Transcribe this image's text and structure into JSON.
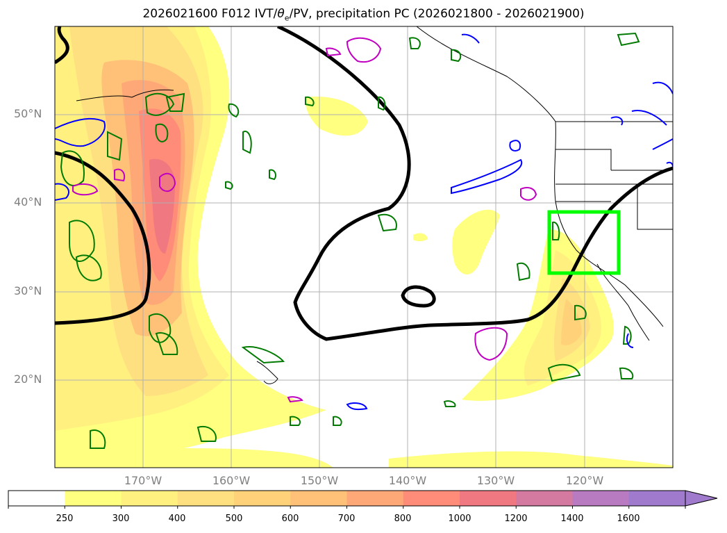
{
  "title": {
    "prefix": "2026021600 F012 IVT/",
    "theta": "θ",
    "sub": "e",
    "suffix": "/PV, precipitation PC (2026021800 - 2026021900)"
  },
  "axes": {
    "lat_labels": [
      "50°N",
      "40°N",
      "30°N",
      "20°N"
    ],
    "lon_labels": [
      "170°W",
      "160°W",
      "150°W",
      "140°W",
      "130°W",
      "120°W"
    ]
  },
  "colorbar": {
    "levels": [
      "250",
      "300",
      "400",
      "500",
      "600",
      "700",
      "800",
      "1000",
      "1200",
      "1400",
      "1600"
    ],
    "colors": [
      "#ffffff",
      "#ffff80",
      "#fff080",
      "#ffe080",
      "#ffd27a",
      "#ffc078",
      "#ffa877",
      "#ff8c78",
      "#f07880",
      "#d47aa0",
      "#b87ac0",
      "#a07acc"
    ]
  },
  "overlays": {
    "highlight_box_color": "#00ff00",
    "theta_contour_color": "#000000",
    "pv_contour_colors": [
      "#007a00",
      "#0000ff",
      "#c000c0"
    ]
  }
}
